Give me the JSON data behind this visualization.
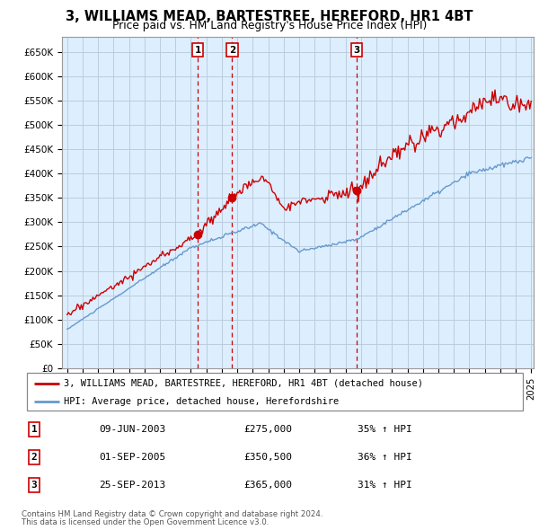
{
  "title": "3, WILLIAMS MEAD, BARTESTREE, HEREFORD, HR1 4BT",
  "subtitle": "Price paid vs. HM Land Registry's House Price Index (HPI)",
  "title_fontsize": 10.5,
  "subtitle_fontsize": 9,
  "sale_display_dates": [
    "09-JUN-2003",
    "01-SEP-2005",
    "25-SEP-2013"
  ],
  "sale_prices_display": [
    "£275,000",
    "£350,500",
    "£365,000"
  ],
  "sale_pct": [
    "35% ↑ HPI",
    "36% ↑ HPI",
    "31% ↑ HPI"
  ],
  "sale_labels": [
    "1",
    "2",
    "3"
  ],
  "hpi_color": "#6699cc",
  "property_color": "#cc0000",
  "vline_color": "#cc0000",
  "chart_bg": "#ddeeff",
  "yticks": [
    0,
    50000,
    100000,
    150000,
    200000,
    250000,
    300000,
    350000,
    400000,
    450000,
    500000,
    550000,
    600000,
    650000
  ],
  "ytick_labels": [
    "£0",
    "£50K",
    "£100K",
    "£150K",
    "£200K",
    "£250K",
    "£300K",
    "£350K",
    "£400K",
    "£450K",
    "£500K",
    "£550K",
    "£600K",
    "£650K"
  ],
  "legend_line1": "3, WILLIAMS MEAD, BARTESTREE, HEREFORD, HR1 4BT (detached house)",
  "legend_line2": "HPI: Average price, detached house, Herefordshire",
  "footnote1": "Contains HM Land Registry data © Crown copyright and database right 2024.",
  "footnote2": "This data is licensed under the Open Government Licence v3.0.",
  "box_color": "#cc0000",
  "grid_color": "#bbccdd"
}
